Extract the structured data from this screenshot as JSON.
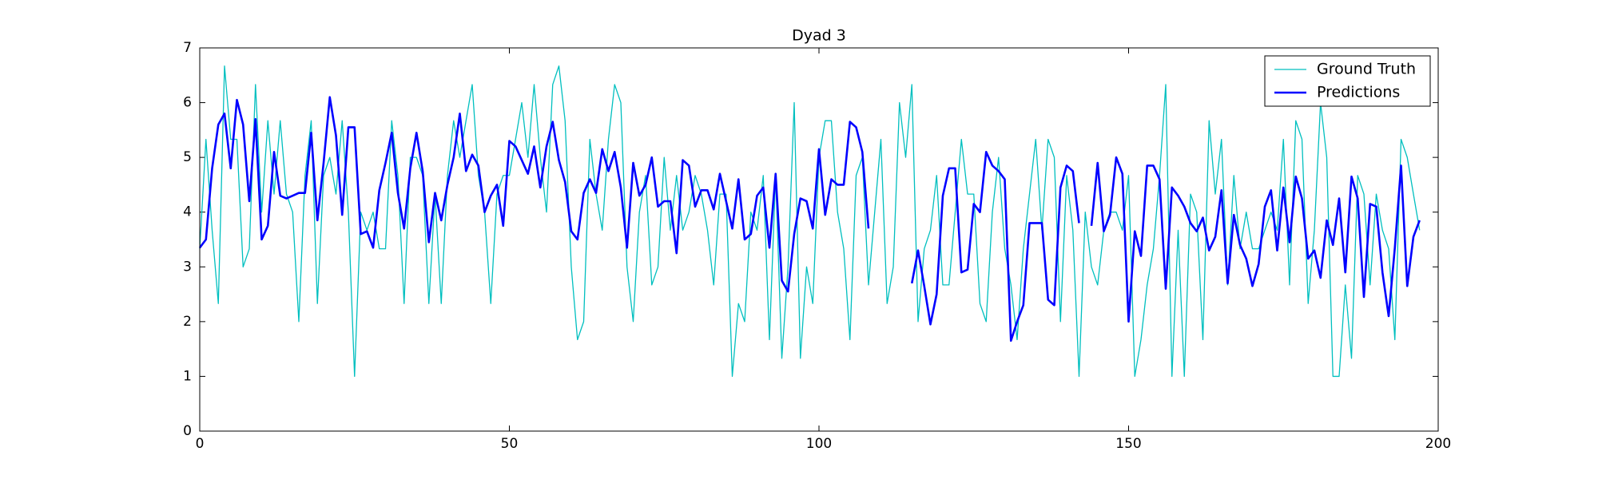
{
  "chart_data": {
    "type": "line",
    "title": "Dyad 3",
    "x": [
      0,
      1,
      2,
      3,
      4,
      5,
      6,
      7,
      8,
      9,
      10,
      11,
      12,
      13,
      14,
      15,
      16,
      17,
      18,
      19,
      20,
      21,
      22,
      23,
      24,
      25,
      26,
      27,
      28,
      29,
      30,
      31,
      32,
      33,
      34,
      35,
      36,
      37,
      38,
      39,
      40,
      41,
      42,
      43,
      44,
      45,
      46,
      47,
      48,
      49,
      50,
      51,
      52,
      53,
      54,
      55,
      56,
      57,
      58,
      59,
      60,
      61,
      62,
      63,
      64,
      65,
      66,
      67,
      68,
      69,
      70,
      71,
      72,
      73,
      74,
      75,
      76,
      77,
      78,
      79,
      80,
      81,
      82,
      83,
      84,
      85,
      86,
      87,
      88,
      89,
      90,
      91,
      92,
      93,
      94,
      95,
      96,
      97,
      98,
      99,
      100,
      101,
      102,
      103,
      104,
      105,
      106,
      107,
      108,
      109,
      110,
      111,
      112,
      113,
      114,
      115,
      116,
      117,
      118,
      119,
      120,
      121,
      122,
      123,
      124,
      125,
      126,
      127,
      128,
      129,
      130,
      131,
      132,
      133,
      134,
      135,
      136,
      137,
      138,
      139,
      140,
      141,
      142,
      143,
      144,
      145,
      146,
      147,
      148,
      149,
      150,
      151,
      152,
      153,
      154,
      155,
      156,
      157,
      158,
      159,
      160,
      161,
      162,
      163,
      164,
      165,
      166,
      167,
      168,
      169,
      170,
      171,
      172,
      173,
      174,
      175,
      176,
      177,
      178,
      179,
      180,
      181,
      182,
      183,
      184,
      185,
      186,
      187,
      188,
      189,
      190,
      191,
      192,
      193,
      194,
      195,
      196,
      197
    ],
    "series": [
      {
        "name": "Ground Truth",
        "color": "#00bfbf",
        "width": 1.3,
        "values": [
          3.33,
          5.33,
          3.67,
          2.33,
          6.67,
          5.33,
          5.33,
          3,
          3.33,
          6.33,
          4,
          5.67,
          4.33,
          5.67,
          4.33,
          4,
          2,
          4.67,
          5.67,
          2.33,
          4.67,
          5,
          4.33,
          5.67,
          4,
          1,
          4,
          3.67,
          4,
          3.33,
          3.33,
          5.67,
          4.67,
          2.33,
          5,
          5,
          4.67,
          2.33,
          4.33,
          2.33,
          4.67,
          5.67,
          5,
          5.67,
          6.33,
          4.67,
          4,
          2.33,
          4.33,
          4.67,
          4.67,
          5.33,
          6,
          5,
          6.33,
          5,
          4,
          6.33,
          6.67,
          5.67,
          3,
          1.67,
          2,
          5.33,
          4.33,
          3.67,
          5.33,
          6.33,
          6,
          3,
          2,
          4,
          4.67,
          2.67,
          3,
          5,
          3.67,
          4.67,
          3.67,
          4,
          4.67,
          4.33,
          3.67,
          2.67,
          4.33,
          4.33,
          1,
          2.33,
          2,
          4,
          3.67,
          4.67,
          1.67,
          4.67,
          1.33,
          3,
          6,
          1.33,
          3,
          2.33,
          5,
          5.67,
          5.67,
          4,
          3.33,
          1.67,
          4.67,
          5,
          2.67,
          4,
          5.33,
          2.33,
          3,
          6,
          5,
          6.33,
          2,
          3.33,
          3.67,
          4.67,
          2.67,
          2.67,
          4,
          5.33,
          4.33,
          4.33,
          2.33,
          2,
          4,
          5,
          3.33,
          2.67,
          1.67,
          3.33,
          4.33,
          5.33,
          3.67,
          5.33,
          5,
          2,
          4.67,
          3.67,
          1,
          4,
          3,
          2.67,
          3.67,
          4,
          4,
          3.67,
          4.67,
          1,
          1.67,
          2.67,
          3.33,
          4.67,
          6.33,
          1,
          3.67,
          1,
          4.33,
          4,
          1.67,
          5.67,
          4.33,
          5.33,
          2.67,
          4.67,
          3.33,
          4,
          3.33,
          3.33,
          3.67,
          4,
          3.67,
          5.33,
          2.67,
          5.67,
          5.33,
          2.33,
          3.67,
          6,
          5,
          1,
          1,
          2.67,
          1.33,
          4.67,
          4.33,
          2.67,
          4.33,
          3.67,
          3.33,
          1.67,
          5.33,
          5,
          4.33,
          3.67
        ]
      },
      {
        "name": "Predictions",
        "color": "#0000ff",
        "width": 2.6,
        "values": [
          3.35,
          3.5,
          4.8,
          5.6,
          5.8,
          4.8,
          6.05,
          5.6,
          4.2,
          5.7,
          3.5,
          3.75,
          5.1,
          4.3,
          4.25,
          4.3,
          4.35,
          4.35,
          5.45,
          3.85,
          4.9,
          6.1,
          5.4,
          3.95,
          5.55,
          5.55,
          3.6,
          3.65,
          3.35,
          4.4,
          4.9,
          5.45,
          4.35,
          3.7,
          4.8,
          5.45,
          4.75,
          3.45,
          4.35,
          3.85,
          4.5,
          5,
          5.8,
          4.75,
          5.05,
          4.85,
          4,
          4.3,
          4.5,
          3.75,
          5.3,
          5.2,
          4.95,
          4.7,
          5.2,
          4.45,
          5.2,
          5.65,
          4.95,
          4.55,
          3.65,
          3.5,
          4.35,
          4.6,
          4.35,
          5.15,
          4.75,
          5.1,
          4.45,
          3.35,
          4.9,
          4.3,
          4.5,
          5,
          4.1,
          4.2,
          4.2,
          3.25,
          4.95,
          4.85,
          4.1,
          4.4,
          4.4,
          4.05,
          4.7,
          4.2,
          3.7,
          4.6,
          3.5,
          3.6,
          4.3,
          4.45,
          3.35,
          4.7,
          2.75,
          2.55,
          3.6,
          4.25,
          4.2,
          3.7,
          5.15,
          3.95,
          4.6,
          4.5,
          4.5,
          5.65,
          5.55,
          5.1,
          3.7,
          null,
          null,
          null,
          null,
          null,
          null,
          2.7,
          3.3,
          2.65,
          1.95,
          2.5,
          4.3,
          4.8,
          4.8,
          2.9,
          2.95,
          4.15,
          4,
          5.1,
          4.85,
          4.75,
          4.6,
          1.65,
          2,
          2.3,
          3.8,
          3.8,
          3.8,
          2.4,
          2.3,
          4.45,
          4.85,
          4.75,
          3.8,
          null,
          3.75,
          4.9,
          3.65,
          3.95,
          5,
          4.7,
          2,
          3.65,
          3.2,
          4.85,
          4.85,
          4.6,
          2.6,
          4.45,
          4.3,
          4.1,
          3.8,
          3.65,
          3.9,
          3.3,
          3.55,
          4.4,
          2.7,
          3.95,
          3.4,
          3.15,
          2.65,
          3.05,
          4.1,
          4.4,
          3.3,
          4.45,
          3.45,
          4.65,
          4.25,
          3.15,
          3.3,
          2.8,
          3.85,
          3.4,
          4.25,
          2.9,
          4.65,
          4.25,
          2.45,
          4.15,
          4.1,
          2.9,
          2.1,
          3.35,
          4.85,
          2.65,
          3.55,
          3.85
        ]
      }
    ],
    "xlim": [
      0,
      200
    ],
    "xticks": [
      0,
      50,
      100,
      150,
      200
    ],
    "ylim": [
      0,
      7
    ],
    "yticks": [
      0,
      1,
      2,
      3,
      4,
      5,
      6,
      7
    ],
    "legend": "upper right"
  }
}
